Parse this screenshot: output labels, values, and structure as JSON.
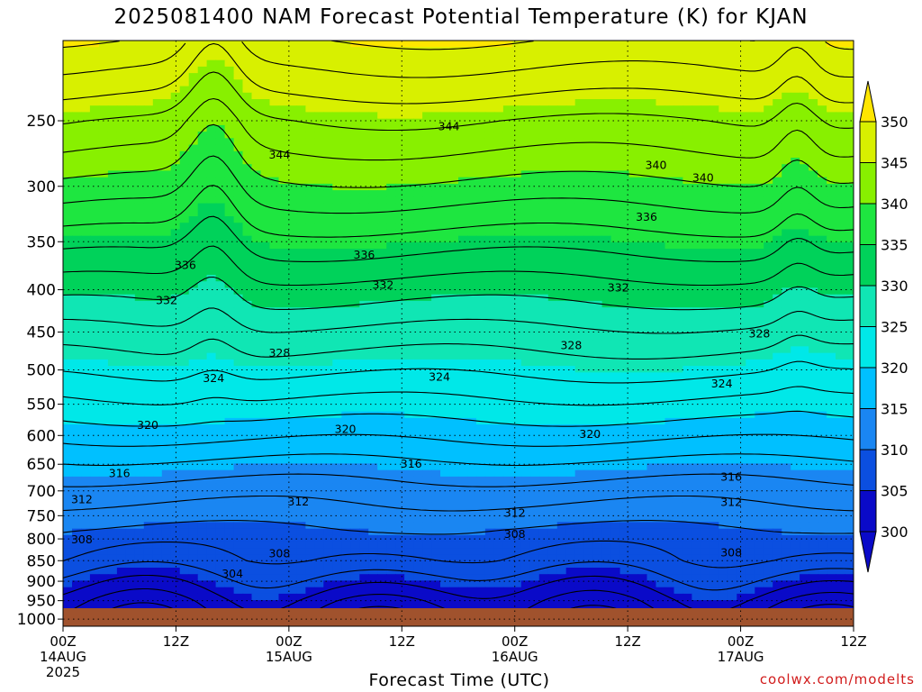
{
  "title": "2025081400 NAM Forecast Potential Temperature (K) for KJAN",
  "x_axis_title": "Forecast Time (UTC)",
  "credit": "coolwx.com/modelts",
  "colors": {
    "ground": "#a0522d",
    "contour_line": "#000000",
    "band_300": "#0a0ac8",
    "band_305": "#0b4fe0",
    "band_310": "#1a86f2",
    "band_315": "#00c0ff",
    "band_320": "#00e8e8",
    "band_325": "#10e6b4",
    "band_330": "#00d25a",
    "band_335": "#1ee640",
    "band_340": "#88f000",
    "band_345": "#d8f000",
    "band_350": "#ffe600"
  },
  "chart_data": {
    "type": "heatmap",
    "title": "2025081400 NAM Forecast Potential Temperature (K) for KJAN",
    "xlabel": "Forecast Time (UTC)",
    "ylabel": "",
    "y_scale": "log-pressure (inverted)",
    "ylim": [
      1020,
      200
    ],
    "y_ticks": [
      "250",
      "300",
      "350",
      "400",
      "450",
      "500",
      "550",
      "600",
      "650",
      "700",
      "750",
      "800",
      "850",
      "900",
      "950",
      "1000"
    ],
    "x_ticks": [
      {
        "lines": [
          "00Z",
          "14AUG",
          "2025"
        ]
      },
      {
        "lines": [
          "12Z"
        ]
      },
      {
        "lines": [
          "00Z",
          "15AUG"
        ]
      },
      {
        "lines": [
          "12Z"
        ]
      },
      {
        "lines": [
          "00Z",
          "16AUG"
        ]
      },
      {
        "lines": [
          "12Z"
        ]
      },
      {
        "lines": [
          "00Z",
          "17AUG"
        ]
      },
      {
        "lines": [
          "12Z"
        ]
      }
    ],
    "colorbar": {
      "levels": [
        "300",
        "305",
        "310",
        "315",
        "320",
        "325",
        "330",
        "335",
        "340",
        "345",
        "350"
      ],
      "colors": [
        "#0a0ac8",
        "#0b4fe0",
        "#1a86f2",
        "#00c0ff",
        "#00e8e8",
        "#10e6b4",
        "#00d25a",
        "#1ee640",
        "#88f000",
        "#d8f000",
        "#ffe600"
      ]
    },
    "contour_interval": 2,
    "contour_labels": [
      {
        "label": "344",
        "hour": 41,
        "pressure": 254
      },
      {
        "label": "344",
        "hour": 23,
        "pressure": 275
      },
      {
        "label": "340",
        "hour": 63,
        "pressure": 283
      },
      {
        "label": "340",
        "hour": 68,
        "pressure": 293
      },
      {
        "label": "336",
        "hour": 62,
        "pressure": 327
      },
      {
        "label": "336",
        "hour": 13,
        "pressure": 374
      },
      {
        "label": "336",
        "hour": 32,
        "pressure": 363
      },
      {
        "label": "332",
        "hour": 34,
        "pressure": 395
      },
      {
        "label": "332",
        "hour": 59,
        "pressure": 398
      },
      {
        "label": "332",
        "hour": 11,
        "pressure": 412
      },
      {
        "label": "328",
        "hour": 54,
        "pressure": 467
      },
      {
        "label": "328",
        "hour": 23,
        "pressure": 477
      },
      {
        "label": "328",
        "hour": 74,
        "pressure": 452
      },
      {
        "label": "324",
        "hour": 16,
        "pressure": 512
      },
      {
        "label": "324",
        "hour": 40,
        "pressure": 510
      },
      {
        "label": "324",
        "hour": 70,
        "pressure": 520
      },
      {
        "label": "320",
        "hour": 9,
        "pressure": 583
      },
      {
        "label": "320",
        "hour": 30,
        "pressure": 590
      },
      {
        "label": "320",
        "hour": 56,
        "pressure": 598
      },
      {
        "label": "316",
        "hour": 6,
        "pressure": 667
      },
      {
        "label": "316",
        "hour": 37,
        "pressure": 650
      },
      {
        "label": "316",
        "hour": 71,
        "pressure": 674
      },
      {
        "label": "312",
        "hour": 2,
        "pressure": 717
      },
      {
        "label": "312",
        "hour": 25,
        "pressure": 722
      },
      {
        "label": "312",
        "hour": 48,
        "pressure": 745
      },
      {
        "label": "312",
        "hour": 71,
        "pressure": 723
      },
      {
        "label": "308",
        "hour": 2,
        "pressure": 802
      },
      {
        "label": "308",
        "hour": 23,
        "pressure": 834
      },
      {
        "label": "308",
        "hour": 48,
        "pressure": 790
      },
      {
        "label": "308",
        "hour": 71,
        "pressure": 832
      },
      {
        "label": "304",
        "hour": 18,
        "pressure": 882
      }
    ]
  }
}
